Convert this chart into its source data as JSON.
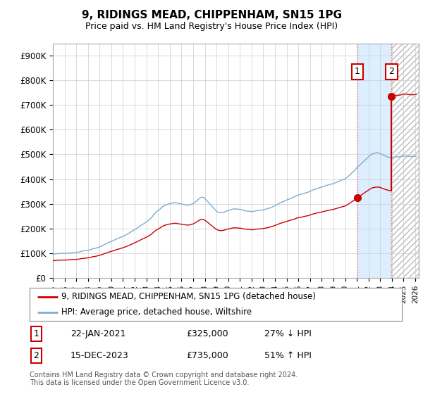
{
  "title": "9, RIDINGS MEAD, CHIPPENHAM, SN15 1PG",
  "subtitle": "Price paid vs. HM Land Registry's House Price Index (HPI)",
  "ylim": [
    0,
    950000
  ],
  "yticks": [
    0,
    100000,
    200000,
    300000,
    400000,
    500000,
    600000,
    700000,
    800000,
    900000
  ],
  "ytick_labels": [
    "£0",
    "£100K",
    "£200K",
    "£300K",
    "£400K",
    "£500K",
    "£600K",
    "£700K",
    "£800K",
    "£900K"
  ],
  "hpi_color": "#7aafd4",
  "price_color": "#cc0000",
  "vline_color": "#e88080",
  "shade_color": "#ddeeff",
  "hatch_color": "#cccccc",
  "purchase1_year": 2021.05,
  "purchase1_price": 325000,
  "purchase2_year": 2023.97,
  "purchase2_price": 735000,
  "legend_entry1": "9, RIDINGS MEAD, CHIPPENHAM, SN15 1PG (detached house)",
  "legend_entry2": "HPI: Average price, detached house, Wiltshire",
  "table_row1": [
    "1",
    "22-JAN-2021",
    "£325,000",
    "27% ↓ HPI"
  ],
  "table_row2": [
    "2",
    "15-DEC-2023",
    "£735,000",
    "51% ↑ HPI"
  ],
  "footer": "Contains HM Land Registry data © Crown copyright and database right 2024.\nThis data is licensed under the Open Government Licence v3.0.",
  "background_color": "#ffffff",
  "grid_color": "#cccccc",
  "xlim_start": 1995.0,
  "xlim_end": 2026.3
}
